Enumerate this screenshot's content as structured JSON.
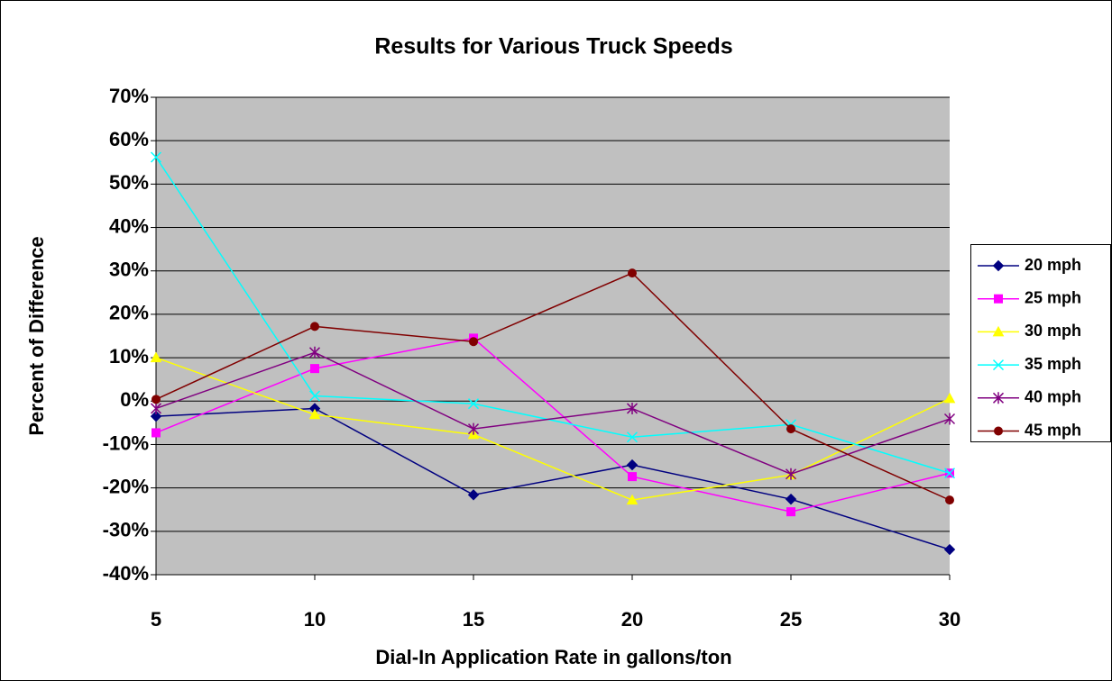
{
  "chart_data": {
    "type": "line",
    "title": "Results for Various Truck Speeds",
    "x_label": "Dial-In Application Rate in gallons/ton",
    "y_label": "Percent of Difference",
    "x": [
      5,
      10,
      15,
      20,
      25,
      30
    ],
    "xlim": [
      5,
      30
    ],
    "xticks": [
      5,
      10,
      15,
      20,
      25,
      30
    ],
    "ylim": [
      -40,
      70
    ],
    "yticks": [
      {
        "value": -40,
        "label": "-40%"
      },
      {
        "value": -30,
        "label": "-30%"
      },
      {
        "value": -20,
        "label": "-20%"
      },
      {
        "value": -10,
        "label": "-10%"
      },
      {
        "value": 0,
        "label": "0%"
      },
      {
        "value": 10,
        "label": "10%"
      },
      {
        "value": 20,
        "label": "20%"
      },
      {
        "value": 30,
        "label": "30%"
      },
      {
        "value": 40,
        "label": "40%"
      },
      {
        "value": 50,
        "label": "50%"
      },
      {
        "value": 60,
        "label": "60%"
      },
      {
        "value": 70,
        "label": "70%"
      }
    ],
    "grid": true,
    "legend": "right",
    "series": [
      {
        "name": "20 mph",
        "color": "#000080",
        "marker": "diamond",
        "values": [
          -3.5,
          -1.7,
          -21.6,
          -14.7,
          -22.6,
          -34.2
        ]
      },
      {
        "name": "25 mph",
        "color": "#ff00ff",
        "marker": "square",
        "values": [
          -7.3,
          7.5,
          14.5,
          -17.4,
          -25.5,
          -16.6
        ]
      },
      {
        "name": "30 mph",
        "color": "#ffff00",
        "marker": "triangle",
        "values": [
          10,
          -3.1,
          -7.7,
          -22.8,
          -17,
          0.6
        ]
      },
      {
        "name": "35 mph",
        "color": "#00ffff",
        "marker": "x",
        "values": [
          56.2,
          1.2,
          -0.6,
          -8.3,
          -5.4,
          -16.6
        ]
      },
      {
        "name": "40 mph",
        "color": "#800080",
        "marker": "star",
        "values": [
          -1.7,
          11.2,
          -6.4,
          -1.7,
          -16.8,
          -4.1
        ]
      },
      {
        "name": "45 mph",
        "color": "#800000",
        "marker": "circle",
        "values": [
          0.4,
          17.2,
          13.7,
          29.5,
          -6.4,
          -22.8
        ]
      }
    ]
  }
}
